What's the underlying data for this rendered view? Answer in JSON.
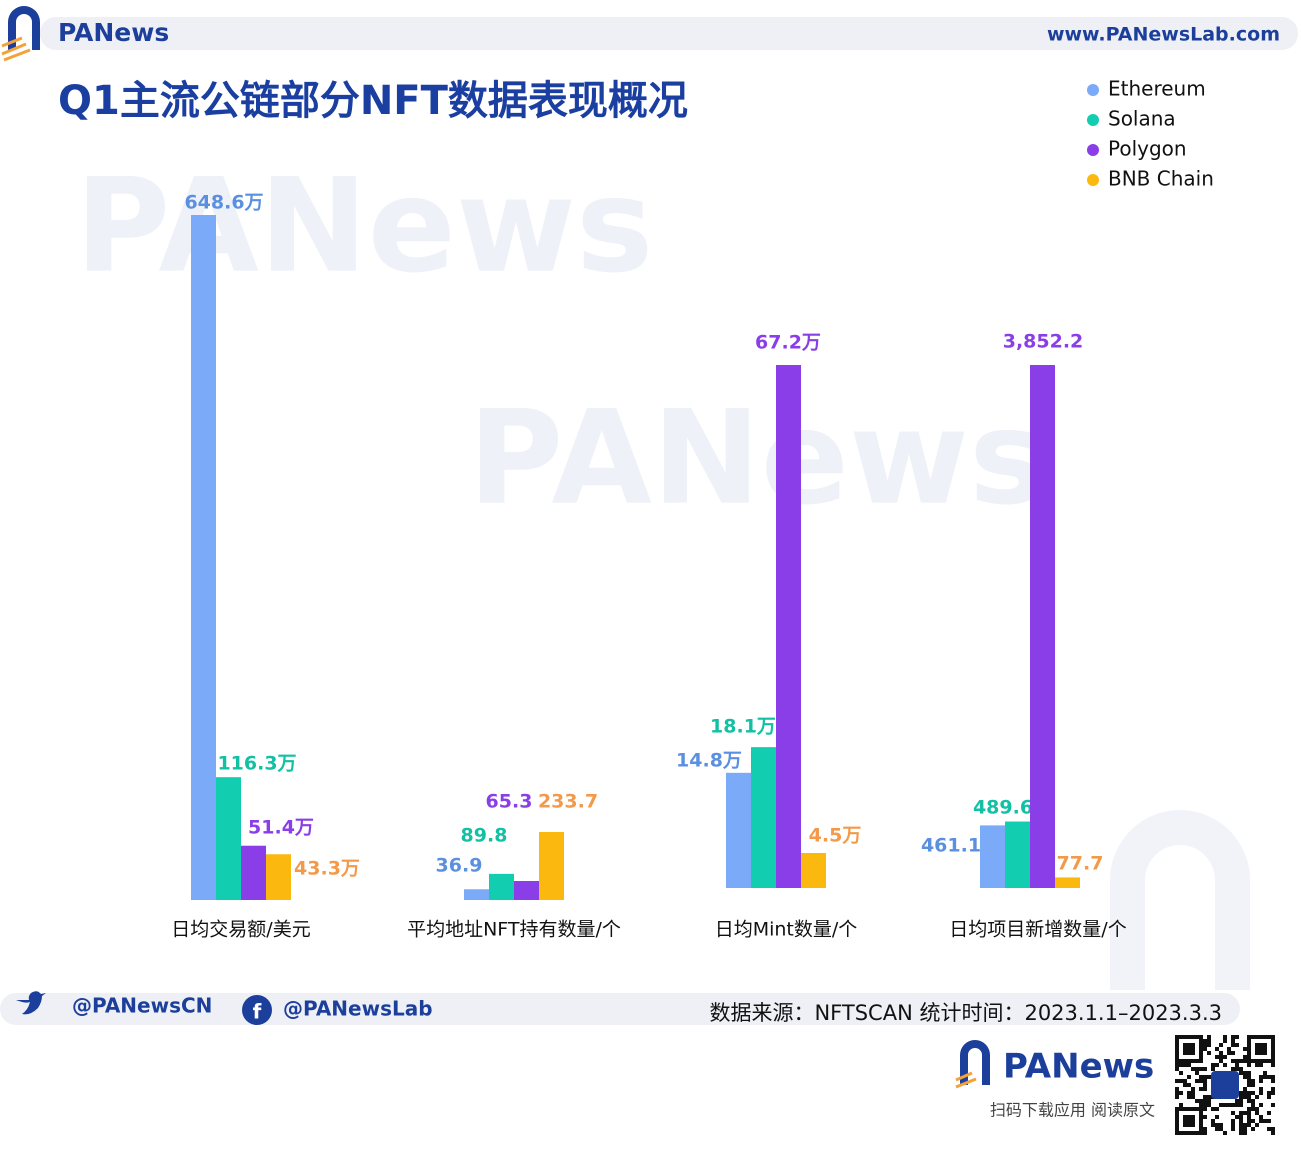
{
  "brand": {
    "name": "PANews",
    "website": "www.PANewsLab.com",
    "twitter": "@PANewsCN",
    "facebook": "@PANewsLab",
    "download": "扫码下载应用 阅读原文"
  },
  "chart_data": {
    "type": "bar",
    "title": "Q1主流公链部分NFT数据表现概况",
    "source": "数据来源：NFTSCAN 统计时间：2023.1.1–2023.3.3",
    "categories": [
      "日均交易额/美元",
      "平均地址NFT持有数量/个",
      "日均Mint数量/个",
      "日均项目新增数量/个"
    ],
    "series": [
      {
        "name": "Ethereum",
        "color": "#7aaaf8",
        "label_color": "#5b8fe0",
        "values": [
          648.6,
          36.9,
          14.8,
          461.1
        ],
        "value_labels": [
          "648.6万",
          "36.9",
          "14.8万",
          "461.1"
        ]
      },
      {
        "name": "Solana",
        "color": "#12cdb0",
        "label_color": "#12c0a4",
        "values": [
          116.3,
          89.8,
          18.1,
          489.6
        ],
        "value_labels": [
          "116.3万",
          "89.8",
          "18.1万",
          "489.6"
        ]
      },
      {
        "name": "Polygon",
        "color": "#8a3ee8",
        "label_color": "#8a3ee8",
        "values": [
          51.4,
          65.3,
          67.2,
          3852.2
        ],
        "value_labels": [
          "51.4万",
          "65.3",
          "67.2万",
          "3,852.2"
        ]
      },
      {
        "name": "BNB Chain",
        "color": "#fbb80e",
        "label_color": "#f39a4a",
        "values": [
          43.3,
          233.7,
          4.5,
          77.7
        ],
        "value_labels": [
          "43.3万",
          "233.7",
          "4.5万",
          "77.7"
        ]
      }
    ],
    "legend": "top-right"
  }
}
